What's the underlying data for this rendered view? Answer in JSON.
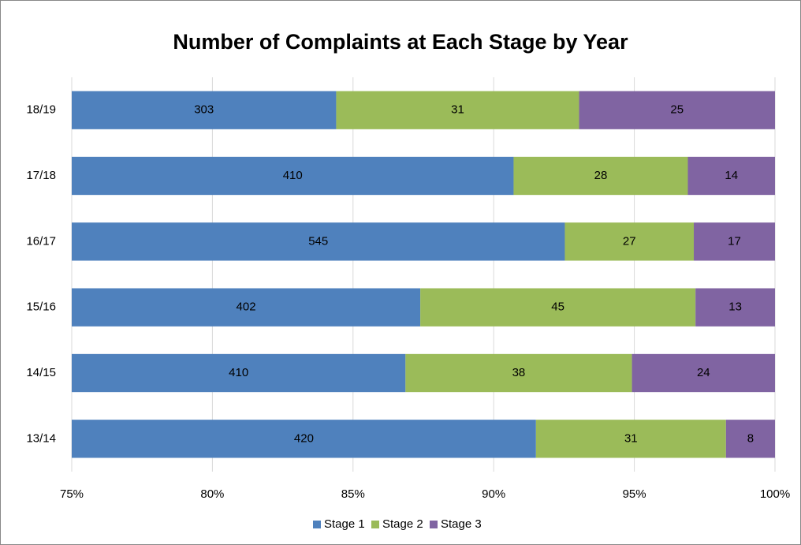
{
  "chart_data": {
    "type": "bar",
    "orientation": "horizontal",
    "stacking": "percent",
    "title": "Number of Complaints at Each Stage by Year",
    "categories": [
      "18/19",
      "17/18",
      "16/17",
      "15/16",
      "14/15",
      "13/14"
    ],
    "series": [
      {
        "name": "Stage 1",
        "color": "#4f81bd",
        "values": [
          303,
          410,
          545,
          402,
          410,
          420
        ]
      },
      {
        "name": "Stage 2",
        "color": "#9bbb59",
        "values": [
          31,
          28,
          27,
          45,
          38,
          31
        ]
      },
      {
        "name": "Stage 3",
        "color": "#8064a2",
        "values": [
          25,
          14,
          17,
          13,
          24,
          8
        ]
      }
    ],
    "xlim": [
      75,
      100
    ],
    "xticks": [
      {
        "value": 75,
        "label": "75%"
      },
      {
        "value": 80,
        "label": "80%"
      },
      {
        "value": 85,
        "label": "85%"
      },
      {
        "value": 90,
        "label": "90%"
      },
      {
        "value": 95,
        "label": "95%"
      },
      {
        "value": 100,
        "label": "100%"
      }
    ],
    "grid": true,
    "data_labels": true,
    "legend": "bottom"
  }
}
